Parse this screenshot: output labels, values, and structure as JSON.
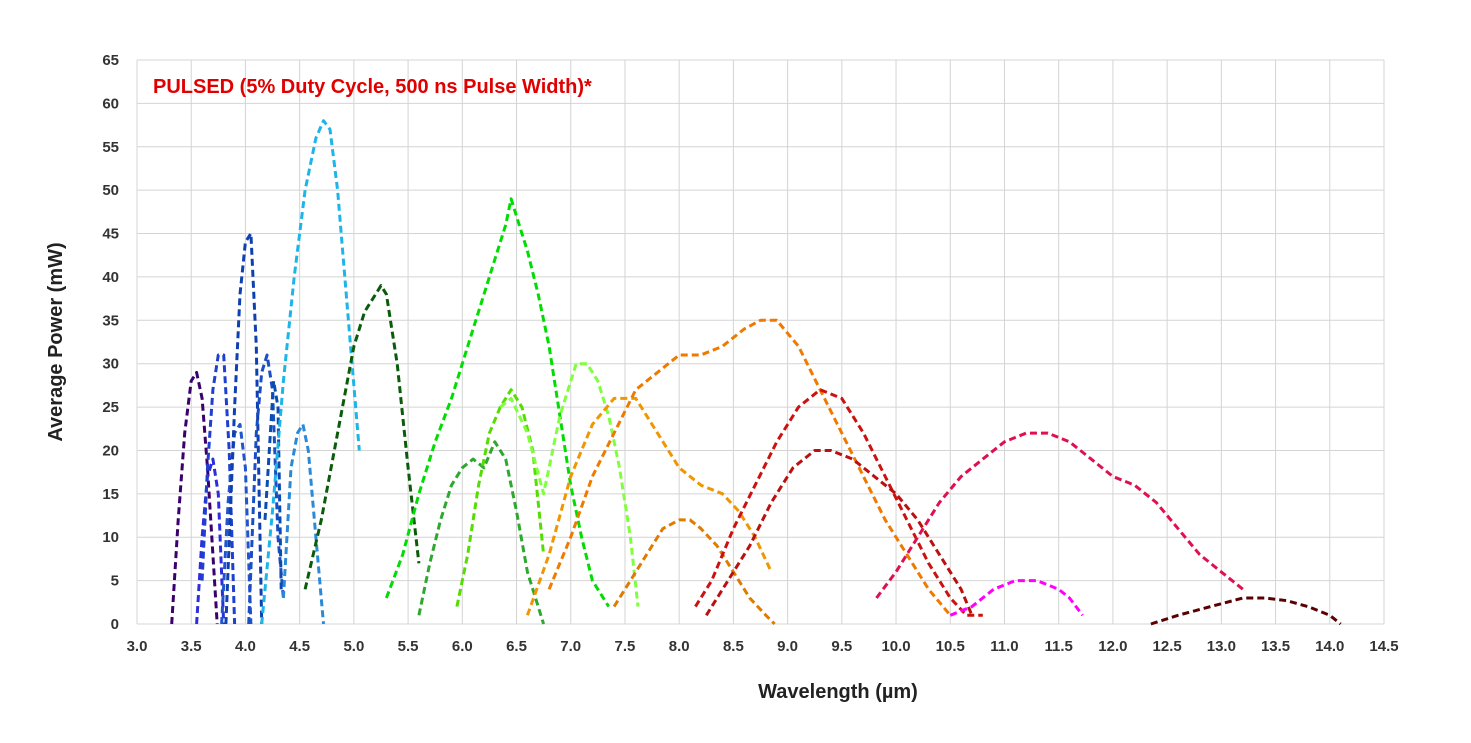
{
  "chart_data": {
    "type": "line",
    "annotation": "PULSED (5% Duty Cycle, 500 ns Pulse Width)*",
    "annotation_color": "#e00000",
    "xlabel": "Wavelength (µm)",
    "ylabel": "Average Power (mW)",
    "xlim": [
      3.0,
      14.5
    ],
    "ylim": [
      0,
      65
    ],
    "xticks": [
      "3.0",
      "3.5",
      "4.0",
      "4.5",
      "5.0",
      "5.5",
      "6.0",
      "6.5",
      "7.0",
      "7.5",
      "8.0",
      "8.5",
      "9.0",
      "9.5",
      "10.0",
      "10.5",
      "11.0",
      "11.5",
      "12.0",
      "12.5",
      "13.0",
      "13.5",
      "14.0",
      "14.5"
    ],
    "yticks": [
      "0",
      "5",
      "10",
      "15",
      "20",
      "25",
      "30",
      "35",
      "40",
      "45",
      "50",
      "55",
      "60",
      "65"
    ],
    "grid": true,
    "line_style": "dashed",
    "series": [
      {
        "color": "#3b006b",
        "x": [
          3.32,
          3.38,
          3.44,
          3.5,
          3.55,
          3.6,
          3.65,
          3.7,
          3.74
        ],
        "y": [
          0,
          12,
          22,
          28,
          29,
          26,
          18,
          8,
          0
        ]
      },
      {
        "color": "#2d2de0",
        "x": [
          3.55,
          3.6,
          3.65,
          3.7,
          3.75,
          3.8
        ],
        "y": [
          0,
          10,
          17,
          19,
          15,
          0
        ]
      },
      {
        "color": "#1f3fd0",
        "x": [
          3.6,
          3.65,
          3.7,
          3.75,
          3.8,
          3.85,
          3.9
        ],
        "y": [
          5,
          18,
          27,
          31,
          31,
          20,
          0
        ]
      },
      {
        "color": "#2255cc",
        "x": [
          3.78,
          3.84,
          3.9,
          3.95,
          4.0,
          4.05
        ],
        "y": [
          0,
          14,
          22,
          23,
          18,
          0
        ]
      },
      {
        "color": "#0f40b0",
        "x": [
          3.82,
          3.9,
          3.95,
          4.0,
          4.05,
          4.1,
          4.15
        ],
        "y": [
          0,
          25,
          38,
          44,
          45,
          32,
          0
        ]
      },
      {
        "color": "#1a4ec4",
        "x": [
          4.03,
          4.1,
          4.15,
          4.2,
          4.25,
          4.3,
          4.35
        ],
        "y": [
          0,
          22,
          29,
          31,
          27,
          10,
          3
        ]
      },
      {
        "color": "#0a4cb0",
        "x": [
          4.18,
          4.22,
          4.26,
          4.3,
          4.33
        ],
        "y": [
          12,
          20,
          28,
          25,
          4
        ]
      },
      {
        "color": "#2a8ad8",
        "x": [
          4.35,
          4.42,
          4.48,
          4.53,
          4.58,
          4.65,
          4.72
        ],
        "y": [
          3,
          18,
          22,
          23,
          20,
          10,
          0
        ]
      },
      {
        "color": "#1db4e8",
        "x": [
          4.15,
          4.25,
          4.35,
          4.45,
          4.55,
          4.65,
          4.72,
          4.78,
          4.85,
          4.95,
          5.05
        ],
        "y": [
          0,
          13,
          28,
          40,
          50,
          56,
          58,
          57,
          50,
          35,
          20
        ]
      },
      {
        "color": "#0a5c0a",
        "x": [
          4.55,
          4.7,
          4.85,
          5.0,
          5.1,
          5.2,
          5.25,
          5.3,
          5.4,
          5.5,
          5.6
        ],
        "y": [
          4,
          12,
          22,
          32,
          36,
          38,
          39,
          38,
          30,
          18,
          7
        ]
      },
      {
        "color": "#00dd00",
        "x": [
          5.3,
          5.45,
          5.6,
          5.75,
          5.9,
          6.0,
          6.1,
          6.2,
          6.3,
          6.4,
          6.45,
          6.5,
          6.55,
          6.6,
          6.7,
          6.8,
          6.9,
          7.0,
          7.1,
          7.2,
          7.35
        ],
        "y": [
          3,
          8,
          15,
          21,
          26,
          30,
          34,
          38,
          42,
          46,
          49,
          47,
          45,
          43,
          38,
          32,
          24,
          16,
          10,
          5,
          2
        ]
      },
      {
        "color": "#2ea82e",
        "x": [
          5.6,
          5.7,
          5.8,
          5.9,
          6.0,
          6.1,
          6.2,
          6.3,
          6.4,
          6.5,
          6.6,
          6.7,
          6.75
        ],
        "y": [
          1,
          7,
          12,
          16,
          18,
          19,
          18,
          21,
          19,
          13,
          6,
          2,
          0
        ]
      },
      {
        "color": "#55dd00",
        "x": [
          5.95,
          6.05,
          6.15,
          6.25,
          6.35,
          6.45,
          6.55,
          6.65,
          6.75
        ],
        "y": [
          2,
          8,
          16,
          22,
          25,
          27,
          25,
          20,
          8
        ]
      },
      {
        "color": "#80ff40",
        "x": [
          6.35,
          6.45,
          6.6,
          6.75,
          6.9,
          7.05,
          7.15,
          7.25,
          7.35,
          7.45,
          7.55,
          7.62
        ],
        "y": [
          25,
          26,
          22,
          15,
          24,
          30,
          30,
          28,
          24,
          18,
          10,
          2
        ]
      },
      {
        "color": "#f09600",
        "x": [
          6.6,
          6.8,
          7.0,
          7.2,
          7.4,
          7.6,
          7.8,
          8.0,
          8.2,
          8.4,
          8.55,
          8.7,
          8.85
        ],
        "y": [
          1,
          8,
          17,
          23,
          26,
          26,
          22,
          18,
          16,
          15,
          13,
          10,
          6
        ]
      },
      {
        "color": "#ee7a00",
        "x": [
          6.8,
          7.0,
          7.2,
          7.4,
          7.6,
          7.8,
          8.0,
          8.2,
          8.4,
          8.6,
          8.75,
          8.9,
          9.1,
          9.3,
          9.5,
          9.7,
          9.9,
          10.1,
          10.3,
          10.5
        ],
        "y": [
          4,
          10,
          17,
          22,
          27,
          29,
          31,
          31,
          32,
          34,
          35,
          35,
          32,
          27,
          22,
          17,
          12,
          8,
          4,
          1
        ]
      },
      {
        "color": "#e07b00",
        "x": [
          7.4,
          7.55,
          7.7,
          7.85,
          8.0,
          8.1,
          8.2,
          8.35,
          8.5,
          8.65,
          8.8,
          8.88
        ],
        "y": [
          2,
          5,
          8,
          11,
          12,
          12,
          11,
          9,
          6,
          3,
          1,
          0
        ]
      },
      {
        "color": "#cc1111",
        "x": [
          8.15,
          8.3,
          8.5,
          8.7,
          8.9,
          9.1,
          9.3,
          9.5,
          9.7,
          9.9,
          10.1,
          10.3,
          10.5,
          10.65,
          10.8
        ],
        "y": [
          2,
          5,
          11,
          16,
          21,
          25,
          27,
          26,
          22,
          17,
          12,
          7,
          3,
          1,
          1
        ]
      },
      {
        "color": "#bb1010",
        "x": [
          8.25,
          8.45,
          8.65,
          8.85,
          9.05,
          9.25,
          9.4,
          9.6,
          9.8,
          10.0,
          10.2,
          10.4,
          10.6,
          10.7
        ],
        "y": [
          1,
          5,
          9,
          14,
          18,
          20,
          20,
          19,
          17,
          15,
          12,
          8,
          4,
          1
        ]
      },
      {
        "color": "#e01050",
        "x": [
          9.82,
          10.0,
          10.2,
          10.4,
          10.6,
          10.8,
          11.0,
          11.2,
          11.4,
          11.6,
          11.8,
          12.0,
          12.2,
          12.4,
          12.6,
          12.8,
          13.0,
          13.2
        ],
        "y": [
          3,
          6,
          10,
          14,
          17,
          19,
          21,
          22,
          22,
          21,
          19,
          17,
          16,
          14,
          11,
          8,
          6,
          4
        ]
      },
      {
        "color": "#ff00ff",
        "x": [
          10.5,
          10.7,
          10.9,
          11.1,
          11.2,
          11.3,
          11.5,
          11.6,
          11.72
        ],
        "y": [
          1,
          2,
          4,
          5,
          5,
          5,
          4,
          3,
          1
        ]
      },
      {
        "color": "#5a0000",
        "x": [
          12.35,
          12.6,
          12.9,
          13.2,
          13.4,
          13.6,
          13.8,
          14.0,
          14.1
        ],
        "y": [
          0,
          1,
          2,
          3,
          3,
          2.7,
          2,
          1,
          0
        ]
      }
    ]
  }
}
